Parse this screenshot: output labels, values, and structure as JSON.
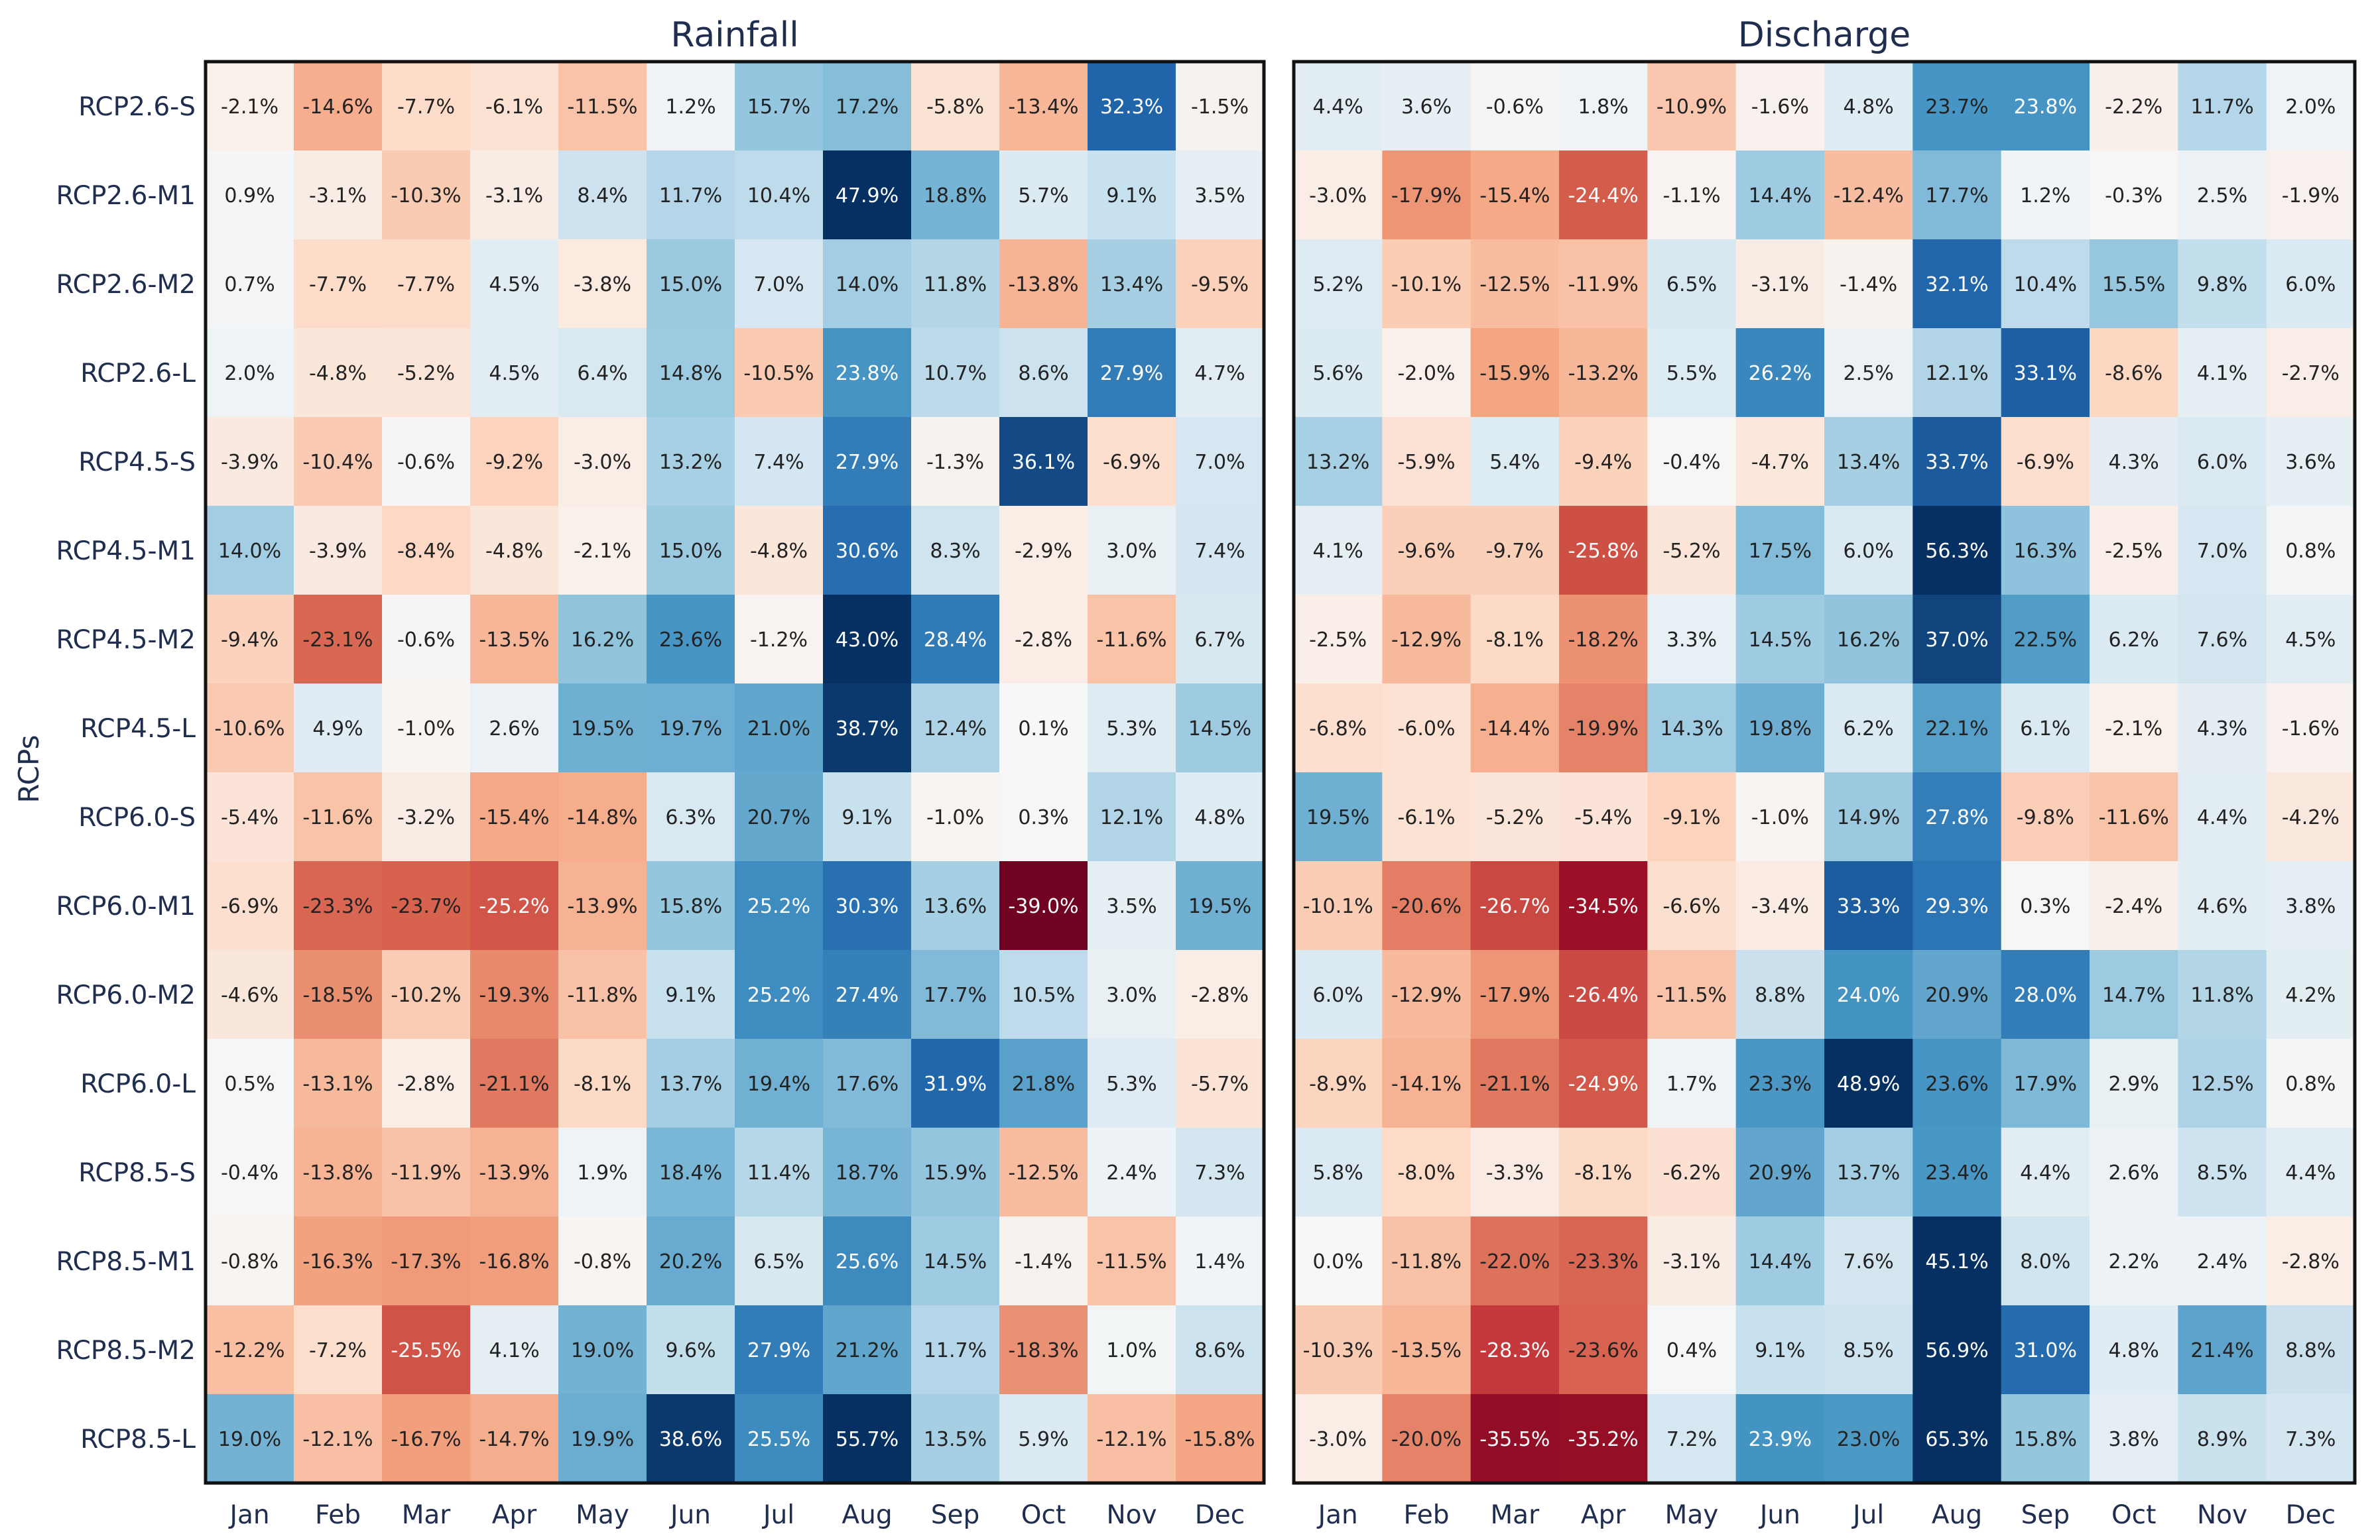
{
  "chart_data": {
    "type": "heatmap",
    "ylabel": "RCPs",
    "colorscale": {
      "name": "RdBu",
      "negative_color": "#67001f",
      "neutral_color": "#f7f7f7",
      "positive_color": "#053061",
      "vmin": -40,
      "vmax": 40,
      "unit": "%"
    },
    "rows": [
      "RCP2.6-S",
      "RCP2.6-M1",
      "RCP2.6-M2",
      "RCP2.6-L",
      "RCP4.5-S",
      "RCP4.5-M1",
      "RCP4.5-M2",
      "RCP4.5-L",
      "RCP6.0-S",
      "RCP6.0-M1",
      "RCP6.0-M2",
      "RCP6.0-L",
      "RCP8.5-S",
      "RCP8.5-M1",
      "RCP8.5-M2",
      "RCP8.5-L"
    ],
    "columns": [
      "Jan",
      "Feb",
      "Mar",
      "Apr",
      "May",
      "Jun",
      "Jul",
      "Aug",
      "Sep",
      "Oct",
      "Nov",
      "Dec"
    ],
    "panels": [
      {
        "title": "Rainfall",
        "values": [
          [
            -2.1,
            -14.6,
            -7.7,
            -6.1,
            -11.5,
            1.2,
            15.7,
            17.2,
            -5.8,
            -13.4,
            32.3,
            -1.5
          ],
          [
            0.9,
            -3.1,
            -10.3,
            -3.1,
            8.4,
            11.7,
            10.4,
            47.9,
            18.8,
            5.7,
            9.1,
            3.5
          ],
          [
            0.7,
            -7.7,
            -7.7,
            4.5,
            -3.8,
            15.0,
            7.0,
            14.0,
            11.8,
            -13.8,
            13.4,
            -9.5
          ],
          [
            2.0,
            -4.8,
            -5.2,
            4.5,
            6.4,
            14.8,
            -10.5,
            23.8,
            10.7,
            8.6,
            27.9,
            4.7
          ],
          [
            -3.9,
            -10.4,
            -0.6,
            -9.2,
            -3.0,
            13.2,
            7.4,
            27.9,
            -1.3,
            36.1,
            -6.9,
            7.0
          ],
          [
            14.0,
            -3.9,
            -8.4,
            -4.8,
            -2.1,
            15.0,
            -4.8,
            30.6,
            8.3,
            -2.9,
            3.0,
            7.4
          ],
          [
            -9.4,
            -23.1,
            -0.6,
            -13.5,
            16.2,
            23.6,
            -1.2,
            43.0,
            28.4,
            -2.8,
            -11.6,
            6.7
          ],
          [
            -10.6,
            4.9,
            -1.0,
            2.6,
            19.5,
            19.7,
            21.0,
            38.7,
            12.4,
            0.1,
            5.3,
            14.5
          ],
          [
            -5.4,
            -11.6,
            -3.2,
            -15.4,
            -14.8,
            6.3,
            20.7,
            9.1,
            -1.0,
            0.3,
            12.1,
            4.8
          ],
          [
            -6.9,
            -23.3,
            -23.7,
            -25.2,
            -13.9,
            15.8,
            25.2,
            30.3,
            13.6,
            -39.0,
            3.5,
            19.5
          ],
          [
            -4.6,
            -18.5,
            -10.2,
            -19.3,
            -11.8,
            9.1,
            25.2,
            27.4,
            17.7,
            10.5,
            3.0,
            -2.8
          ],
          [
            0.5,
            -13.1,
            -2.8,
            -21.1,
            -8.1,
            13.7,
            19.4,
            17.6,
            31.9,
            21.8,
            5.3,
            -5.7
          ],
          [
            -0.4,
            -13.8,
            -11.9,
            -13.9,
            1.9,
            18.4,
            11.4,
            18.7,
            15.9,
            -12.5,
            2.4,
            7.3
          ],
          [
            -0.8,
            -16.3,
            -17.3,
            -16.8,
            -0.8,
            20.2,
            6.5,
            25.6,
            14.5,
            -1.4,
            -11.5,
            1.4
          ],
          [
            -12.2,
            -7.2,
            -25.5,
            4.1,
            19.0,
            9.6,
            27.9,
            21.2,
            11.7,
            -18.3,
            1.0,
            8.6
          ],
          [
            19.0,
            -12.1,
            -16.7,
            -14.7,
            19.9,
            38.6,
            25.5,
            55.7,
            13.5,
            5.9,
            -12.1,
            -15.8
          ]
        ]
      },
      {
        "title": "Discharge",
        "values": [
          [
            4.4,
            3.6,
            -0.6,
            1.8,
            -10.9,
            -1.6,
            4.8,
            23.7,
            23.8,
            -2.2,
            11.7,
            2.0
          ],
          [
            -3.0,
            -17.9,
            -15.4,
            -24.4,
            -1.1,
            14.4,
            -12.4,
            17.7,
            1.2,
            -0.3,
            2.5,
            -1.9
          ],
          [
            5.2,
            -10.1,
            -12.5,
            -11.9,
            6.5,
            -3.1,
            -1.4,
            32.1,
            10.4,
            15.5,
            9.8,
            6.0
          ],
          [
            5.6,
            -2.0,
            -15.9,
            -13.2,
            5.5,
            26.2,
            2.5,
            12.1,
            33.1,
            -8.6,
            4.1,
            -2.7
          ],
          [
            13.2,
            -5.9,
            5.4,
            -9.4,
            -0.4,
            -4.7,
            13.4,
            33.7,
            -6.9,
            4.3,
            6.0,
            3.6
          ],
          [
            4.1,
            -9.6,
            -9.7,
            -25.8,
            -5.2,
            17.5,
            6.0,
            56.3,
            16.3,
            -2.5,
            7.0,
            0.8
          ],
          [
            -2.5,
            -12.9,
            -8.1,
            -18.2,
            3.3,
            14.5,
            16.2,
            37.0,
            22.5,
            6.2,
            7.6,
            4.5
          ],
          [
            -6.8,
            -6.0,
            -14.4,
            -19.9,
            14.3,
            19.8,
            6.2,
            22.1,
            6.1,
            -2.1,
            4.3,
            -1.6
          ],
          [
            19.5,
            -6.1,
            -5.2,
            -5.4,
            -9.1,
            -1.0,
            14.9,
            27.8,
            -9.8,
            -11.6,
            4.4,
            -4.2
          ],
          [
            -10.1,
            -20.6,
            -26.7,
            -34.5,
            -6.6,
            -3.4,
            33.3,
            29.3,
            0.3,
            -2.4,
            4.6,
            3.8
          ],
          [
            6.0,
            -12.9,
            -17.9,
            -26.4,
            -11.5,
            8.8,
            24.0,
            20.9,
            28.0,
            14.7,
            11.8,
            4.2
          ],
          [
            -8.9,
            -14.1,
            -21.1,
            -24.9,
            1.7,
            23.3,
            48.9,
            23.6,
            17.9,
            2.9,
            12.5,
            0.8
          ],
          [
            5.8,
            -8.0,
            -3.3,
            -8.1,
            -6.2,
            20.9,
            13.7,
            23.4,
            4.4,
            2.6,
            8.5,
            4.4
          ],
          [
            0.0,
            -11.8,
            -22.0,
            -23.3,
            -3.1,
            14.4,
            7.6,
            45.1,
            8.0,
            2.2,
            2.4,
            -2.8
          ],
          [
            -10.3,
            -13.5,
            -28.3,
            -23.6,
            0.4,
            9.1,
            8.5,
            56.9,
            31.0,
            4.8,
            21.4,
            8.8
          ],
          [
            -3.0,
            -20.0,
            -35.5,
            -35.2,
            7.2,
            23.9,
            23.0,
            65.3,
            15.8,
            3.8,
            8.9,
            7.3
          ]
        ]
      }
    ]
  }
}
